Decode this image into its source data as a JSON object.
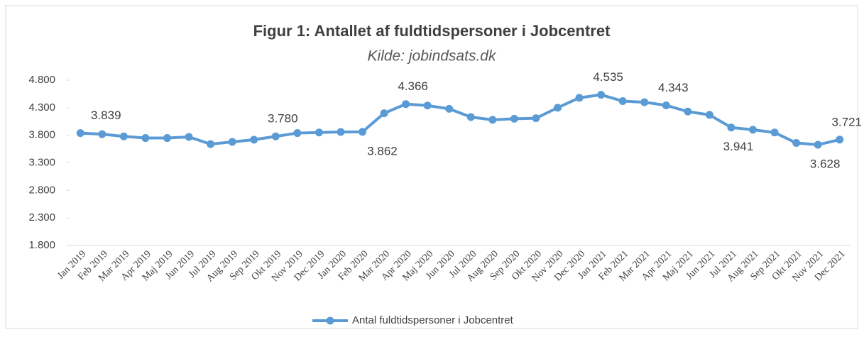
{
  "chart_data": {
    "type": "line",
    "title": "Figur 1: Antallet af fuldtidspersoner i Jobcentret",
    "subtitle": "Kilde: jobindsats.dk",
    "categories": [
      "Jan 2019",
      "Feb 2019",
      "Mar 2019",
      "Apr 2019",
      "Maj 2019",
      "Jun 2019",
      "Jul 2019",
      "Aug 2019",
      "Sep 2019",
      "Okt 2019",
      "Nov 2019",
      "Dec 2019",
      "Jan 2020",
      "Feb 2020",
      "Mar 2020",
      "Apr 2020",
      "Maj 2020",
      "Jun 2020",
      "Jul 2020",
      "Aug 2020",
      "Sep 2020",
      "Okt 2020",
      "Nov 2020",
      "Dec 2020",
      "Jan 2021",
      "Feb 2021",
      "Mar 2021",
      "Apr 2021",
      "Maj 2021",
      "Jun 2021",
      "Jul 2021",
      "Aug 2021",
      "Sep 2021",
      "Okt 2021",
      "Nov 2021",
      "Dec 2021"
    ],
    "series": [
      {
        "name": "Antal fuldtidspersoner i Jobcentret",
        "color": "#5b9bd5",
        "values": [
          3839,
          3820,
          3780,
          3750,
          3750,
          3770,
          3640,
          3680,
          3720,
          3780,
          3840,
          3850,
          3860,
          3862,
          4200,
          4366,
          4340,
          4280,
          4130,
          4080,
          4100,
          4110,
          4300,
          4480,
          4535,
          4420,
          4400,
          4343,
          4230,
          4170,
          3941,
          3900,
          3850,
          3660,
          3628,
          3721
        ],
        "value_labels": [
          "3.839",
          null,
          null,
          null,
          null,
          null,
          null,
          null,
          null,
          "3.780",
          null,
          null,
          null,
          "3.862",
          null,
          "4.366",
          null,
          null,
          null,
          null,
          null,
          null,
          null,
          null,
          "4.535",
          null,
          null,
          "4.343",
          null,
          null,
          "3.941",
          null,
          null,
          null,
          "3.628",
          "3.721"
        ]
      }
    ],
    "ylim": [
      1800,
      4800
    ],
    "yticks": [
      {
        "value": 1800,
        "label": "1.800"
      },
      {
        "value": 2300,
        "label": "2.300"
      },
      {
        "value": 2800,
        "label": "2.800"
      },
      {
        "value": 3300,
        "label": "3.300"
      },
      {
        "value": 3800,
        "label": "3.800"
      },
      {
        "value": 4300,
        "label": "4.300"
      },
      {
        "value": 4800,
        "label": "4.800"
      }
    ],
    "grid": false,
    "legend": "bottom"
  }
}
